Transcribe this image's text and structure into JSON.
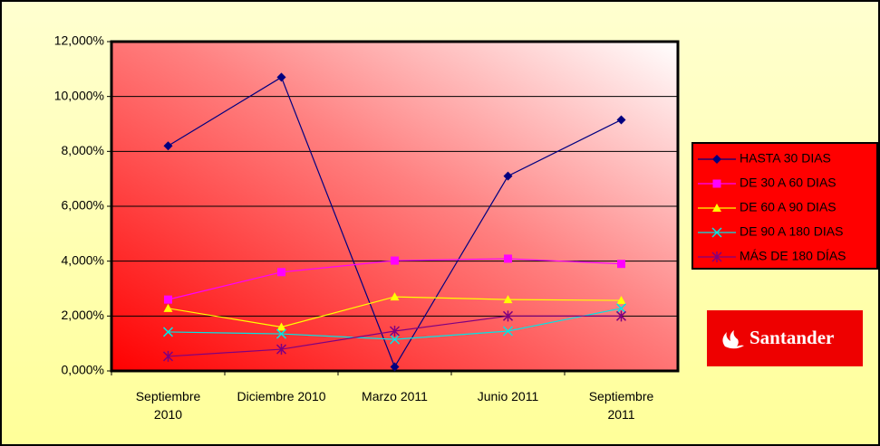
{
  "chart_data": {
    "type": "line",
    "categories": [
      "Septiembre 2010",
      "Diciembre 2010",
      "Marzo 2011",
      "Junio 2011",
      "Septiembre 2011"
    ],
    "series": [
      {
        "name": "HASTA 30 DIAS",
        "color": "#000080",
        "marker": "diamond",
        "values": [
          8.2,
          10.7,
          0.15,
          7.1,
          9.15
        ]
      },
      {
        "name": "DE 30 A 60 DIAS",
        "color": "#ff00ff",
        "marker": "square",
        "values": [
          2.6,
          3.6,
          4.02,
          4.09,
          3.9
        ]
      },
      {
        "name": "DE 60 A 90 DIAS",
        "color": "#ffff00",
        "marker": "triangle",
        "values": [
          2.28,
          1.6,
          2.7,
          2.6,
          2.57
        ]
      },
      {
        "name": "DE 90 A 180 DIAS",
        "color": "#00e5e5",
        "marker": "x",
        "values": [
          1.42,
          1.35,
          1.15,
          1.45,
          2.28
        ]
      },
      {
        "name": "MÁS DE 180 DÍAS",
        "color": "#800080",
        "marker": "star",
        "values": [
          0.53,
          0.79,
          1.45,
          2.0,
          2.0
        ]
      }
    ],
    "ylim": [
      0,
      12
    ],
    "yticks": [
      {
        "value": 0,
        "label": "0,000%"
      },
      {
        "value": 2,
        "label": "2,000%"
      },
      {
        "value": 4,
        "label": "4,000%"
      },
      {
        "value": 6,
        "label": "6,000%"
      },
      {
        "value": 8,
        "label": "8,000%"
      },
      {
        "value": 10,
        "label": "10,000%"
      },
      {
        "value": 12,
        "label": "12,000%"
      }
    ],
    "grid": true,
    "legend": "right"
  },
  "logo": {
    "text": "Santander"
  }
}
